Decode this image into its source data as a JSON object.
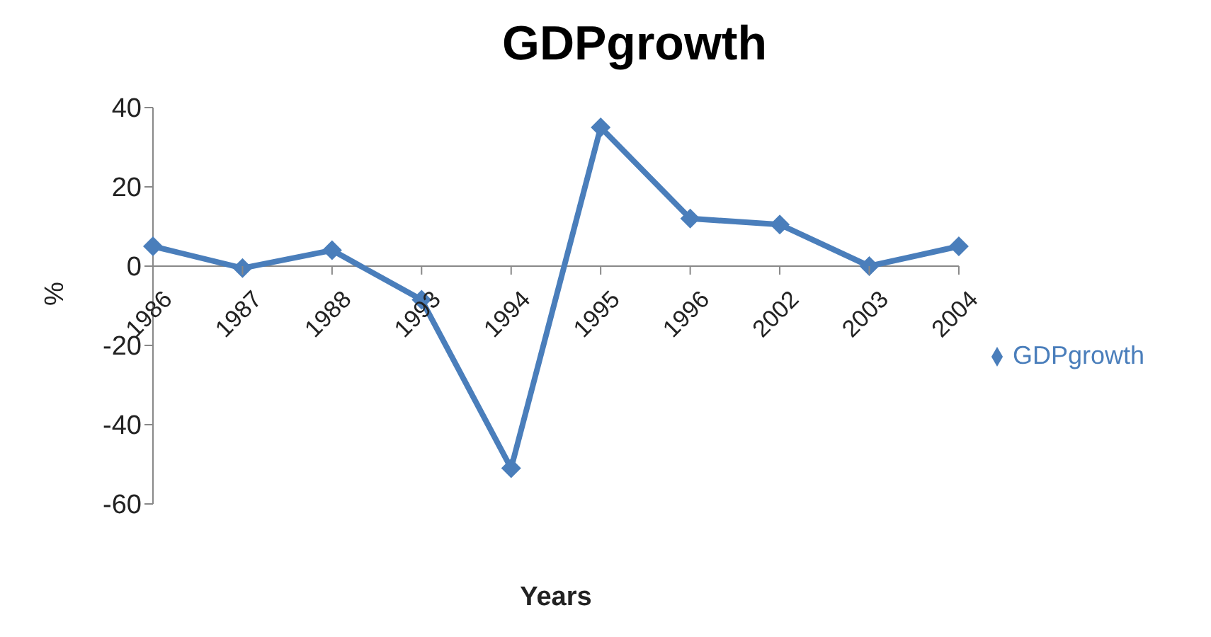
{
  "chart_data": {
    "type": "line",
    "title": "GDPgrowth",
    "xlabel": "Years",
    "ylabel": "%",
    "categories": [
      "1986",
      "1987",
      "1988",
      "1993",
      "1994",
      "1995",
      "1996",
      "2002",
      "2003",
      "2004"
    ],
    "series": [
      {
        "name": "GDPgrowth",
        "color": "#4a7ebb",
        "values": [
          5,
          -0.5,
          4,
          -8.5,
          -51,
          35,
          12,
          10.5,
          0,
          5
        ]
      }
    ],
    "ylim": [
      -60,
      40
    ],
    "yticks": [
      -60,
      -40,
      -20,
      0,
      20,
      40
    ],
    "grid": false,
    "legend": "right",
    "marker": "diamond",
    "line_style": "solid"
  }
}
